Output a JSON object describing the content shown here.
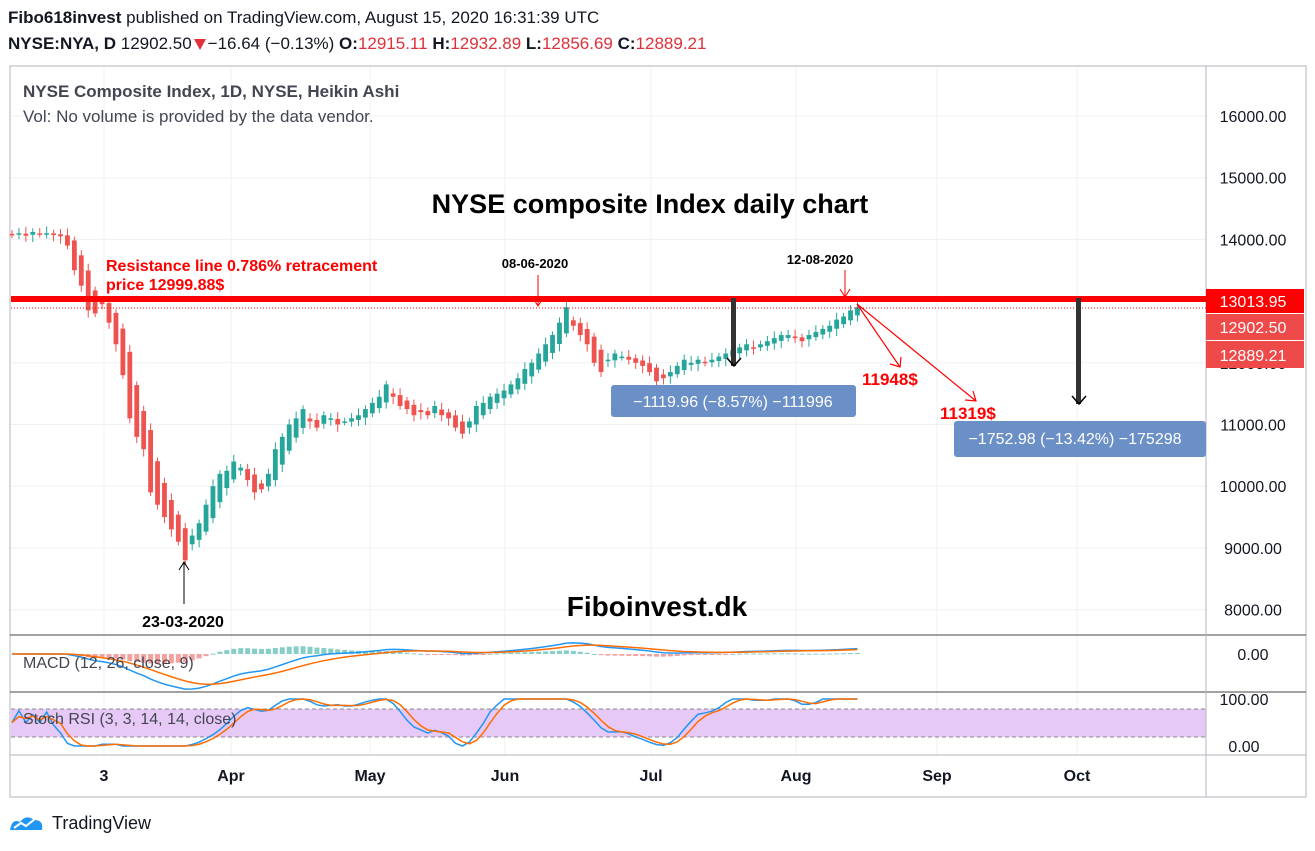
{
  "header": {
    "author": "Fibo618invest",
    "published": "published on TradingView.com, August 15, 2020 16:31:39 UTC",
    "symbol": "NYSE:NYA, D",
    "last": "12902.50",
    "change": "−16.64 (−0.13%)",
    "o_label": "O:",
    "o": "12915.11",
    "h_label": "H:",
    "h": "12932.89",
    "l_label": "L:",
    "l": "12856.69",
    "c_label": "C:",
    "c": "12889.21"
  },
  "legend": {
    "title": "NYSE Composite Index, 1D, NYSE, Heikin Ashi",
    "vol": "Vol: No volume is provided by the data vendor."
  },
  "annotations": {
    "main_title": "NYSE composite Index daily chart",
    "resistance_line1": "Resistance line 0.786% retracement",
    "resistance_line2": "price 12999.88$",
    "date_jun": "08-06-2020",
    "date_aug": "12-08-2020",
    "date_mar": "23-03-2020",
    "target1": "11948$",
    "target2": "11319$",
    "measure1": "−1119.96 (−8.57%) −111996",
    "measure2": "−1752.98 (−13.42%) −175298",
    "watermark": "Fiboinvest.dk"
  },
  "price_labels": {
    "resistance": "13013.95",
    "last": "12902.50",
    "close": "12889.21"
  },
  "indicators": {
    "macd_label": "MACD (12, 26, close, 9)",
    "macd_tick": "0.00",
    "rsi_label": "Stoch RSI (3, 3, 14, 14, close)",
    "rsi_tick_top": "100.00",
    "rsi_tick_bottom": "0.00"
  },
  "footer": {
    "brand": "TradingView"
  },
  "colors": {
    "up": "#26a69a",
    "down": "#ef5350",
    "resistance": "#ff0000",
    "measure_box": "#6b8fc7",
    "macd": "#2196f3",
    "signal": "#ff6d00",
    "rsi_band": "#e1bee7"
  },
  "chart_data": {
    "type": "candlestick",
    "y_axis_ticks": [
      8000,
      9000,
      10000,
      11000,
      12000,
      13000,
      14000,
      15000,
      16000
    ],
    "x_axis_labels": [
      "3",
      "Apr",
      "May",
      "Jun",
      "Jul",
      "Aug",
      "Sep",
      "Oct"
    ],
    "resistance_price": 13013.95,
    "projections": [
      11948,
      11319
    ],
    "series_close": [
      14080,
      14100,
      14060,
      14120,
      14090,
      14100,
      14070,
      14050,
      13900,
      13500,
      13250,
      12850,
      12800,
      12950,
      12650,
      12300,
      11800,
      11100,
      10800,
      10600,
      9900,
      9700,
      9500,
      9300,
      9100,
      8800,
      9200,
      9400,
      9700,
      10000,
      10200,
      10250,
      10400,
      10300,
      10100,
      9900,
      9950,
      10200,
      10600,
      10800,
      11000,
      11100,
      11250,
      11050,
      10950,
      11150,
      11100,
      11000,
      11050,
      11100,
      11150,
      11250,
      11350,
      11450,
      11650,
      11450,
      11300,
      11250,
      11150,
      11200,
      11150,
      11300,
      11150,
      11100,
      10950,
      10850,
      11050,
      11300,
      11350,
      11450,
      11500,
      11550,
      11650,
      11750,
      11900,
      12000,
      12150,
      12300,
      12450,
      12650,
      12900,
      12600,
      12450,
      12300,
      12000,
      11850,
      12050,
      12150,
      12100,
      12050,
      12000,
      11950,
      11850,
      11700,
      11750,
      11850,
      11950,
      12050,
      12000,
      12050,
      12000,
      12050,
      12100,
      12150,
      12200,
      12250,
      12300,
      12250,
      12300,
      12350,
      12400,
      12450,
      12450,
      12400,
      12350,
      12450,
      12500,
      12550,
      12600,
      12700,
      12750,
      12850,
      12902.5
    ]
  }
}
